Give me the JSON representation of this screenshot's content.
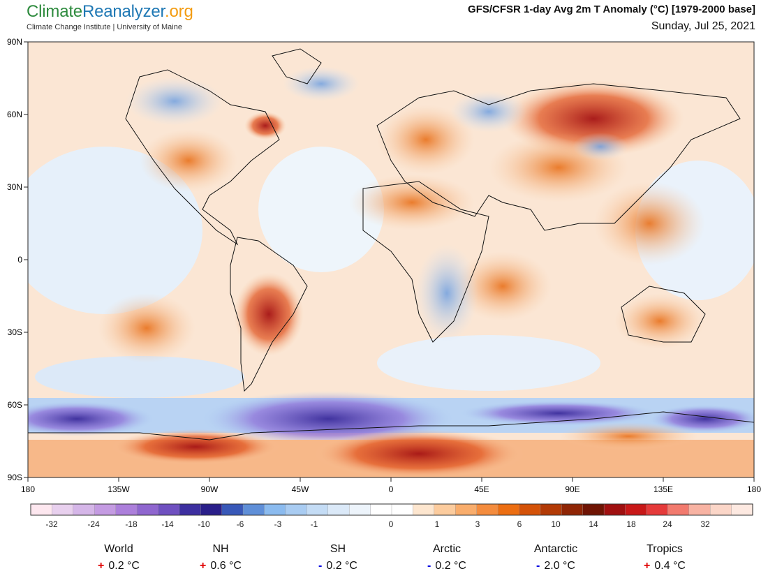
{
  "header": {
    "brand_climate": "Climate",
    "brand_reanalyzer": "Reanalyzer",
    "brand_org": ".org",
    "subtitle": "Climate Change Institute | University of Maine",
    "title": "GFS/CFSR 1-day Avg 2m T Anomaly (°C) [1979-2000 base]",
    "date": "Sunday, Jul 25, 2021"
  },
  "map": {
    "lat_labels": [
      "90N",
      "60N",
      "30N",
      "0",
      "30S",
      "60S",
      "90S"
    ],
    "lon_labels": [
      "180",
      "135W",
      "90W",
      "45W",
      "0",
      "45E",
      "90E",
      "135E",
      "180"
    ]
  },
  "legend": {
    "labels": [
      "-32",
      "-24",
      "-18",
      "-14",
      "-10",
      "-6",
      "-3",
      "-1",
      "0",
      "1",
      "3",
      "6",
      "10",
      "14",
      "18",
      "24",
      "32"
    ],
    "colors": [
      "#fde7ef",
      "#e8d0ee",
      "#d5b6e8",
      "#c49be2",
      "#ac7fdb",
      "#8f66cf",
      "#6f50c0",
      "#3d2fa0",
      "#2a1f8a",
      "#3858b8",
      "#5f8fd8",
      "#8bbbef",
      "#a9ccf2",
      "#c4dcf5",
      "#dbe9f8",
      "#edf4fb",
      "#ffffff",
      "#ffffff",
      "#fde6cf",
      "#fccc9e",
      "#f9ad6c",
      "#f48c3e",
      "#ec6e12",
      "#d45208",
      "#b23a06",
      "#8f2505",
      "#6f1404",
      "#a01010",
      "#c81818",
      "#e53a3a",
      "#f27a6e",
      "#f8b3a3",
      "#fbd6c8",
      "#fde9e1"
    ]
  },
  "stats": [
    {
      "name": "World",
      "sign": "+",
      "value": "0.2 °C",
      "color": "#e00000"
    },
    {
      "name": "NH",
      "sign": "+",
      "value": "0.6 °C",
      "color": "#e00000"
    },
    {
      "name": "SH",
      "sign": "-",
      "value": "0.2 °C",
      "color": "#0000e0"
    },
    {
      "name": "Arctic",
      "sign": "-",
      "value": "0.2 °C",
      "color": "#0000e0"
    },
    {
      "name": "Antarctic",
      "sign": "-",
      "value": "2.0 °C",
      "color": "#0000e0"
    },
    {
      "name": "Tropics",
      "sign": "+",
      "value": "0.4 °C",
      "color": "#e00000"
    }
  ]
}
